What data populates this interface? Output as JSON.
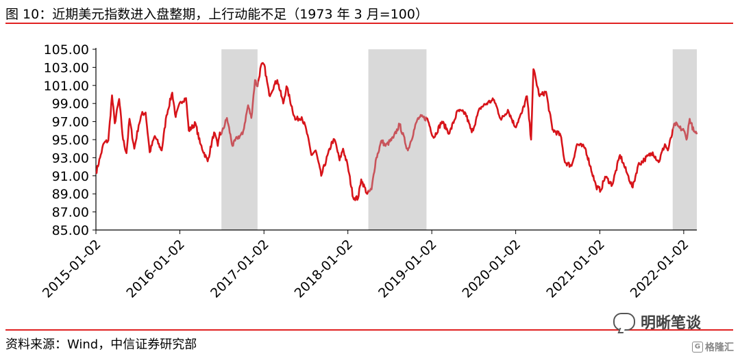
{
  "header": {
    "title": "图 10：近期美元指数进入盘整期，上行动能不足（1973 年 3 月=100）"
  },
  "footer": {
    "source": "资料来源：Wind，中信证券研究部"
  },
  "watermark": {
    "text": "明晰笔谈",
    "badge_text": "格隆汇",
    "badge_icon": "G"
  },
  "colors": {
    "line": "#d7141a",
    "line_in_band": "#c8545b",
    "band": "#d9d9d9",
    "rule": "#e02020"
  },
  "chart_data": {
    "type": "line",
    "title": "",
    "xlabel": "",
    "ylabel": "",
    "ylim": [
      85,
      105
    ],
    "y_ticks": [
      "85.00",
      "87.00",
      "89.00",
      "91.00",
      "93.00",
      "95.00",
      "97.00",
      "99.00",
      "101.00",
      "103.00",
      "105.00"
    ],
    "x_ticks": [
      "2015-01-02",
      "2016-01-02",
      "2017-01-02",
      "2018-01-02",
      "2019-01-02",
      "2020-01-02",
      "2021-01-02",
      "2022-01-02"
    ],
    "x_range": [
      "2015-01-02",
      "2022-02-28"
    ],
    "grid": false,
    "shaded_periods": [
      {
        "start": "2016-07-01",
        "end": "2016-12-05"
      },
      {
        "start": "2018-04-01",
        "end": "2018-12-10"
      },
      {
        "start": "2021-11-15",
        "end": "2022-02-28"
      }
    ],
    "series": [
      {
        "points": [
          [
            "2015-01-02",
            91.3
          ],
          [
            "2015-01-20",
            93.0
          ],
          [
            "2015-02-05",
            94.6
          ],
          [
            "2015-02-25",
            94.9
          ],
          [
            "2015-03-13",
            99.9
          ],
          [
            "2015-03-25",
            96.8
          ],
          [
            "2015-04-13",
            99.5
          ],
          [
            "2015-04-30",
            95.0
          ],
          [
            "2015-05-15",
            93.5
          ],
          [
            "2015-05-28",
            97.3
          ],
          [
            "2015-06-18",
            94.0
          ],
          [
            "2015-07-07",
            96.6
          ],
          [
            "2015-07-20",
            97.8
          ],
          [
            "2015-08-06",
            98.0
          ],
          [
            "2015-08-24",
            93.6
          ],
          [
            "2015-09-15",
            95.4
          ],
          [
            "2015-10-15",
            93.8
          ],
          [
            "2015-11-05",
            97.7
          ],
          [
            "2015-11-30",
            100.2
          ],
          [
            "2015-12-15",
            97.5
          ],
          [
            "2016-01-05",
            99.2
          ],
          [
            "2016-01-29",
            99.6
          ],
          [
            "2016-02-10",
            96.0
          ],
          [
            "2016-03-10",
            96.8
          ],
          [
            "2016-03-30",
            94.6
          ],
          [
            "2016-05-02",
            92.6
          ],
          [
            "2016-05-30",
            95.8
          ],
          [
            "2016-06-15",
            94.3
          ],
          [
            "2016-06-24",
            95.8
          ],
          [
            "2016-07-01",
            95.6
          ],
          [
            "2016-07-25",
            97.4
          ],
          [
            "2016-08-18",
            94.3
          ],
          [
            "2016-09-07",
            95.2
          ],
          [
            "2016-10-01",
            95.6
          ],
          [
            "2016-10-25",
            98.8
          ],
          [
            "2016-11-08",
            97.4
          ],
          [
            "2016-11-24",
            101.6
          ],
          [
            "2016-12-05",
            100.9
          ],
          [
            "2016-12-20",
            103.2
          ],
          [
            "2017-01-03",
            103.3
          ],
          [
            "2017-01-25",
            99.9
          ],
          [
            "2017-02-15",
            101.0
          ],
          [
            "2017-03-01",
            101.6
          ],
          [
            "2017-03-27",
            99.0
          ],
          [
            "2017-04-10",
            100.9
          ],
          [
            "2017-05-18",
            97.2
          ],
          [
            "2017-06-15",
            97.5
          ],
          [
            "2017-07-05",
            96.1
          ],
          [
            "2017-07-27",
            93.3
          ],
          [
            "2017-08-15",
            93.8
          ],
          [
            "2017-09-08",
            91.0
          ],
          [
            "2017-10-26",
            94.8
          ],
          [
            "2017-11-07",
            94.9
          ],
          [
            "2017-11-27",
            92.7
          ],
          [
            "2017-12-12",
            94.0
          ],
          [
            "2018-01-02",
            92.0
          ],
          [
            "2018-01-25",
            88.6
          ],
          [
            "2018-02-15",
            88.5
          ],
          [
            "2018-03-01",
            90.6
          ],
          [
            "2018-03-27",
            89.0
          ],
          [
            "2018-04-15",
            89.5
          ],
          [
            "2018-05-03",
            92.7
          ],
          [
            "2018-05-29",
            94.9
          ],
          [
            "2018-06-15",
            94.3
          ],
          [
            "2018-07-19",
            95.2
          ],
          [
            "2018-08-15",
            96.7
          ],
          [
            "2018-09-20",
            93.8
          ],
          [
            "2018-10-31",
            97.2
          ],
          [
            "2018-11-12",
            97.5
          ],
          [
            "2018-12-14",
            97.3
          ],
          [
            "2019-01-10",
            95.2
          ],
          [
            "2019-02-15",
            97.0
          ],
          [
            "2019-03-20",
            95.7
          ],
          [
            "2019-04-25",
            98.2
          ],
          [
            "2019-05-29",
            97.9
          ],
          [
            "2019-06-25",
            95.8
          ],
          [
            "2019-07-31",
            98.5
          ],
          [
            "2019-09-03",
            99.1
          ],
          [
            "2019-09-30",
            99.4
          ],
          [
            "2019-10-31",
            97.2
          ],
          [
            "2019-11-29",
            98.3
          ],
          [
            "2019-12-31",
            96.4
          ],
          [
            "2020-01-28",
            97.9
          ],
          [
            "2020-02-20",
            99.8
          ],
          [
            "2020-03-09",
            95.0
          ],
          [
            "2020-03-19",
            102.8
          ],
          [
            "2020-04-15",
            99.8
          ],
          [
            "2020-05-13",
            100.3
          ],
          [
            "2020-06-10",
            96.1
          ],
          [
            "2020-07-15",
            95.5
          ],
          [
            "2020-08-03",
            92.5
          ],
          [
            "2020-09-01",
            92.1
          ],
          [
            "2020-09-25",
            94.5
          ],
          [
            "2020-10-30",
            94.1
          ],
          [
            "2020-12-17",
            89.8
          ],
          [
            "2021-01-06",
            89.4
          ],
          [
            "2021-01-25",
            90.9
          ],
          [
            "2021-02-25",
            90.0
          ],
          [
            "2021-03-31",
            93.3
          ],
          [
            "2021-04-30",
            91.3
          ],
          [
            "2021-05-25",
            89.7
          ],
          [
            "2021-06-18",
            92.2
          ],
          [
            "2021-07-15",
            92.8
          ],
          [
            "2021-08-20",
            93.6
          ],
          [
            "2021-09-15",
            92.5
          ],
          [
            "2021-10-12",
            94.5
          ],
          [
            "2021-10-25",
            93.8
          ],
          [
            "2021-11-24",
            96.8
          ],
          [
            "2021-12-15",
            96.3
          ],
          [
            "2022-01-03",
            96.0
          ],
          [
            "2022-01-14",
            95.0
          ],
          [
            "2022-01-28",
            97.3
          ],
          [
            "2022-02-15",
            95.9
          ],
          [
            "2022-02-28",
            95.6
          ]
        ]
      }
    ]
  }
}
